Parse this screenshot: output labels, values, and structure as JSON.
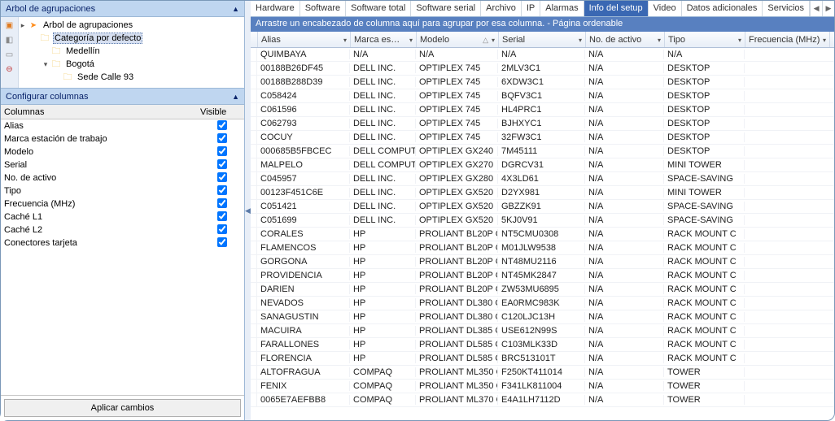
{
  "left": {
    "panel1_title": "Arbol de agrupaciones",
    "tree": {
      "root": "Arbol de agrupaciones",
      "items": [
        {
          "label": "Categoría por defecto",
          "selected": true,
          "depth": 1
        },
        {
          "label": "Medellín",
          "depth": 2
        },
        {
          "label": "Bogotá",
          "depth": 2,
          "expandable": true
        },
        {
          "label": "Sede Calle 93",
          "depth": 3
        }
      ]
    },
    "panel2_title": "Configurar columnas",
    "cols_header": {
      "c1": "Columnas",
      "c2": "Visible"
    },
    "config": [
      {
        "label": "Alias",
        "visible": true
      },
      {
        "label": "Marca estación de trabajo",
        "visible": true
      },
      {
        "label": "Modelo",
        "visible": true
      },
      {
        "label": "Serial",
        "visible": true
      },
      {
        "label": "No. de activo",
        "visible": true
      },
      {
        "label": "Tipo",
        "visible": true
      },
      {
        "label": "Frecuencia (MHz)",
        "visible": true
      },
      {
        "label": "Caché L1",
        "visible": true
      },
      {
        "label": "Caché L2",
        "visible": true
      },
      {
        "label": "Conectores tarjeta",
        "visible": true
      }
    ],
    "apply_label": "Aplicar cambios"
  },
  "tabs": {
    "items": [
      "Hardware",
      "Software",
      "Software total",
      "Software serial",
      "Archivo",
      "IP",
      "Alarmas",
      "Info del setup",
      "Video",
      "Datos adicionales",
      "Servicios"
    ],
    "active_index": 7
  },
  "group_bar": "Arrastre un encabezado de columna aquí para agrupar por esa columna. - Página ordenable",
  "grid": {
    "columns": [
      "Alias",
      "Marca es…",
      "Modelo",
      "Serial",
      "No. de activo",
      "Tipo",
      "Frecuencia (MHz)"
    ],
    "sort_col": 2,
    "rows": [
      [
        "QUIMBAYA",
        "N/A",
        "N/A",
        "N/A",
        "N/A",
        "N/A",
        ""
      ],
      [
        "00188B26DF45",
        "DELL INC.",
        "OPTIPLEX 745",
        "2MLV3C1",
        "N/A",
        "DESKTOP",
        ""
      ],
      [
        "00188B288D39",
        "DELL INC.",
        "OPTIPLEX 745",
        "6XDW3C1",
        "N/A",
        "DESKTOP",
        ""
      ],
      [
        "C058424",
        "DELL INC.",
        "OPTIPLEX 745",
        "BQFV3C1",
        "N/A",
        "DESKTOP",
        ""
      ],
      [
        "C061596",
        "DELL INC.",
        "OPTIPLEX 745",
        "HL4PRC1",
        "N/A",
        "DESKTOP",
        ""
      ],
      [
        "C062793",
        "DELL INC.",
        "OPTIPLEX 745",
        "BJHXYC1",
        "N/A",
        "DESKTOP",
        ""
      ],
      [
        "COCUY",
        "DELL INC.",
        "OPTIPLEX 745",
        "32FW3C1",
        "N/A",
        "DESKTOP",
        ""
      ],
      [
        "000685B5FBCEC",
        "DELL COMPUT",
        "OPTIPLEX GX240",
        "7M45111",
        "N/A",
        "DESKTOP",
        ""
      ],
      [
        "MALPELO",
        "DELL COMPUT",
        "OPTIPLEX GX270",
        "DGRCV31",
        "N/A",
        "MINI TOWER",
        ""
      ],
      [
        "C045957",
        "DELL INC.",
        "OPTIPLEX GX280",
        "4X3LD61",
        "N/A",
        "SPACE-SAVING",
        ""
      ],
      [
        "00123F451C6E",
        "DELL INC.",
        "OPTIPLEX GX520",
        "D2YX981",
        "N/A",
        "MINI TOWER",
        ""
      ],
      [
        "C051421",
        "DELL INC.",
        "OPTIPLEX GX520",
        "GBZZK91",
        "N/A",
        "SPACE-SAVING",
        ""
      ],
      [
        "C051699",
        "DELL INC.",
        "OPTIPLEX GX520",
        "5KJ0V91",
        "N/A",
        "SPACE-SAVING",
        ""
      ],
      [
        "CORALES",
        "HP",
        "PROLIANT BL20P G",
        "NT5CMU0308",
        "N/A",
        "RACK MOUNT C",
        ""
      ],
      [
        "FLAMENCOS",
        "HP",
        "PROLIANT BL20P G",
        "M01JLW9538",
        "N/A",
        "RACK MOUNT C",
        ""
      ],
      [
        "GORGONA",
        "HP",
        "PROLIANT BL20P G",
        "NT48MU2116",
        "N/A",
        "RACK MOUNT C",
        ""
      ],
      [
        "PROVIDENCIA",
        "HP",
        "PROLIANT BL20P G",
        "NT45MK2847",
        "N/A",
        "RACK MOUNT C",
        ""
      ],
      [
        "DARIEN",
        "HP",
        "PROLIANT BL20P G",
        "ZW53MU6895",
        "N/A",
        "RACK MOUNT C",
        ""
      ],
      [
        "NEVADOS",
        "HP",
        "PROLIANT DL380 G",
        "EA0RMC983K",
        "N/A",
        "RACK MOUNT C",
        ""
      ],
      [
        "SANAGUSTIN",
        "HP",
        "PROLIANT DL380 G",
        "C120LJC13H",
        "N/A",
        "RACK MOUNT C",
        ""
      ],
      [
        "MACUIRA",
        "HP",
        "PROLIANT DL385 G",
        "USE612N99S",
        "N/A",
        "RACK MOUNT C",
        ""
      ],
      [
        "FARALLONES",
        "HP",
        "PROLIANT DL585 G",
        "C103MLK33D",
        "N/A",
        "RACK MOUNT C",
        ""
      ],
      [
        "FLORENCIA",
        "HP",
        "PROLIANT DL585 G",
        "BRC513101T",
        "N/A",
        "RACK MOUNT C",
        ""
      ],
      [
        "ALTOFRAGUA",
        "COMPAQ",
        "PROLIANT ML350 G",
        "F250KT411014",
        "N/A",
        "TOWER",
        ""
      ],
      [
        "FENIX",
        "COMPAQ",
        "PROLIANT ML350 G",
        "F341LK811004",
        "N/A",
        "TOWER",
        ""
      ],
      [
        "0065E7AEFBB8",
        "COMPAQ",
        "PROLIANT ML370 G",
        "E4A1LH7112D",
        "N/A",
        "TOWER",
        ""
      ]
    ]
  }
}
